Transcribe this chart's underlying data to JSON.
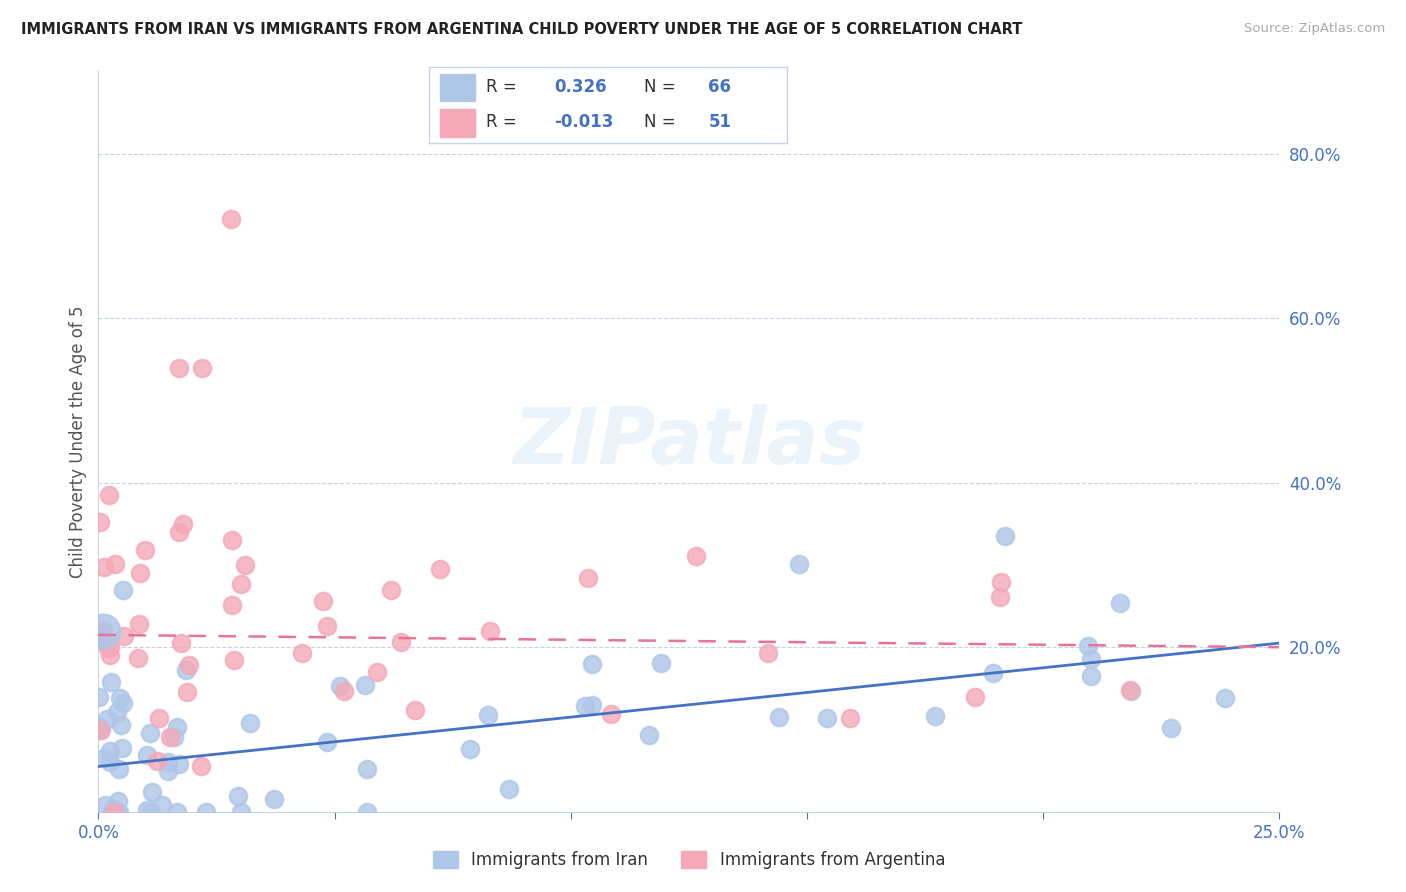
{
  "title": "IMMIGRANTS FROM IRAN VS IMMIGRANTS FROM ARGENTINA CHILD POVERTY UNDER THE AGE OF 5 CORRELATION CHART",
  "source": "Source: ZipAtlas.com",
  "ylabel": "Child Poverty Under the Age of 5",
  "watermark": "ZIPatlas",
  "iran_R": 0.326,
  "iran_N": 66,
  "argentina_R": -0.013,
  "argentina_N": 51,
  "iran_color": "#aec6e8",
  "argentina_color": "#f4a8b8",
  "iran_line_color": "#4472c4",
  "argentina_line_color": "#e8729a",
  "axis_color": "#4472c4",
  "grid_color": "#c8d4e4",
  "background": "#ffffff",
  "legend_text_color": "#333333",
  "xlim": [
    0.0,
    0.25
  ],
  "ylim": [
    0.0,
    0.9
  ],
  "ytick_vals": [
    0.0,
    0.2,
    0.4,
    0.6,
    0.8
  ],
  "ytick_labels": [
    "",
    "20.0%",
    "40.0%",
    "60.0%",
    "80.0%"
  ],
  "xtick_vals": [
    0.0,
    0.05,
    0.1,
    0.15,
    0.2,
    0.25
  ],
  "xtick_labels": [
    "0.0%",
    "",
    "",
    "",
    "",
    "25.0%"
  ],
  "iran_line_x0": 0.0,
  "iran_line_y0": 0.055,
  "iran_line_x1": 0.25,
  "iran_line_y1": 0.205,
  "arg_line_x0": 0.0,
  "arg_line_y0": 0.215,
  "arg_line_x1": 0.25,
  "arg_line_y1": 0.2
}
